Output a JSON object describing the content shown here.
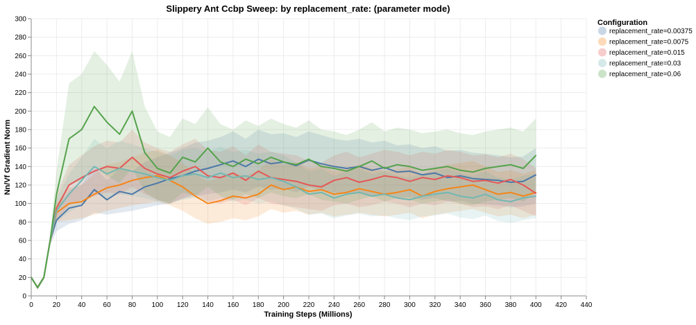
{
  "chart_data": {
    "type": "line",
    "title": "Slippery Ant Ccbp Sweep: by replacement_rate: (parameter mode)",
    "xlabel": "Training Steps (Millions)",
    "ylabel": "Nn/Vf Gradient Norm",
    "xlim": [
      0,
      440
    ],
    "ylim": [
      0,
      300
    ],
    "x_ticks": [
      "0",
      "20",
      "40",
      "60",
      "80",
      "100",
      "120",
      "140",
      "160",
      "180",
      "200",
      "220",
      "240",
      "260",
      "280",
      "300",
      "320",
      "340",
      "360",
      "380",
      "400",
      "420",
      "440"
    ],
    "y_ticks": [
      "0",
      "20",
      "40",
      "60",
      "80",
      "100",
      "120",
      "140",
      "160",
      "180",
      "200",
      "220",
      "240",
      "260",
      "280",
      "300"
    ],
    "grid": true,
    "legend": {
      "title": "Configuration",
      "position": "top-right"
    },
    "shaded_band": "min-max range across seeds",
    "x": [
      0,
      5,
      10,
      15,
      20,
      30,
      40,
      50,
      60,
      70,
      80,
      90,
      100,
      110,
      120,
      130,
      140,
      150,
      160,
      170,
      180,
      190,
      200,
      210,
      220,
      230,
      240,
      250,
      260,
      270,
      280,
      290,
      300,
      310,
      320,
      330,
      340,
      350,
      360,
      370,
      380,
      390,
      400
    ],
    "series": [
      {
        "name": "replacement_rate=0.00375",
        "color": "#4c78a8",
        "values": [
          20,
          9,
          20,
          60,
          82,
          95,
          98,
          115,
          104,
          113,
          110,
          118,
          122,
          127,
          130,
          135,
          138,
          142,
          146,
          140,
          148,
          143,
          145,
          141,
          147,
          143,
          140,
          138,
          140,
          136,
          139,
          134,
          135,
          131,
          133,
          128,
          130,
          127,
          126,
          125,
          123,
          124,
          131
        ],
        "lower": [
          20,
          7,
          18,
          55,
          70,
          78,
          82,
          90,
          88,
          90,
          92,
          95,
          98,
          100,
          105,
          108,
          110,
          112,
          115,
          112,
          118,
          115,
          116,
          112,
          118,
          114,
          112,
          110,
          111,
          108,
          110,
          106,
          107,
          104,
          106,
          102,
          103,
          100,
          99,
          98,
          96,
          97,
          100
        ],
        "upper": [
          21,
          11,
          22,
          66,
          95,
          115,
          120,
          140,
          125,
          138,
          135,
          145,
          150,
          155,
          160,
          166,
          168,
          172,
          178,
          170,
          180,
          175,
          176,
          172,
          178,
          174,
          170,
          168,
          170,
          166,
          168,
          163,
          164,
          160,
          162,
          157,
          158,
          155,
          154,
          152,
          150,
          151,
          160
        ]
      },
      {
        "name": "replacement_rate=0.0075",
        "color": "#f58518",
        "values": [
          20,
          9,
          20,
          60,
          90,
          100,
          102,
          110,
          117,
          120,
          125,
          128,
          130,
          125,
          118,
          108,
          100,
          103,
          108,
          106,
          110,
          120,
          115,
          118,
          113,
          115,
          110,
          112,
          116,
          113,
          110,
          112,
          115,
          108,
          113,
          116,
          118,
          120,
          115,
          110,
          112,
          108,
          112
        ],
        "lower": [
          20,
          7,
          18,
          55,
          80,
          82,
          84,
          88,
          92,
          95,
          98,
          100,
          102,
          98,
          92,
          84,
          78,
          80,
          84,
          82,
          86,
          94,
          90,
          92,
          88,
          90,
          86,
          88,
          90,
          88,
          86,
          88,
          90,
          84,
          88,
          90,
          92,
          94,
          90,
          86,
          88,
          84,
          88
        ],
        "upper": [
          21,
          11,
          22,
          66,
          100,
          118,
          120,
          132,
          142,
          145,
          150,
          155,
          158,
          152,
          144,
          132,
          124,
          128,
          134,
          130,
          136,
          148,
          142,
          145,
          138,
          140,
          135,
          137,
          142,
          138,
          135,
          137,
          140,
          132,
          138,
          142,
          144,
          146,
          140,
          134,
          136,
          132,
          136
        ]
      },
      {
        "name": "replacement_rate=0.015",
        "color": "#e45756",
        "values": [
          20,
          9,
          20,
          60,
          95,
          120,
          128,
          135,
          140,
          138,
          150,
          138,
          132,
          128,
          135,
          140,
          130,
          128,
          133,
          125,
          135,
          128,
          126,
          124,
          120,
          118,
          125,
          128,
          123,
          126,
          130,
          128,
          124,
          128,
          126,
          130,
          128,
          124,
          125,
          122,
          126,
          120,
          111
        ],
        "lower": [
          20,
          7,
          18,
          55,
          82,
          98,
          104,
          108,
          112,
          110,
          118,
          110,
          104,
          100,
          106,
          110,
          102,
          100,
          104,
          98,
          106,
          100,
          98,
          96,
          94,
          92,
          98,
          100,
          96,
          98,
          102,
          100,
          96,
          100,
          98,
          102,
          100,
          96,
          97,
          94,
          98,
          92,
          86
        ],
        "upper": [
          21,
          11,
          22,
          66,
          110,
          142,
          152,
          162,
          168,
          166,
          180,
          166,
          160,
          156,
          164,
          170,
          158,
          156,
          162,
          152,
          164,
          156,
          154,
          152,
          146,
          144,
          152,
          156,
          150,
          154,
          158,
          156,
          152,
          156,
          154,
          158,
          156,
          152,
          153,
          150,
          154,
          148,
          138
        ]
      },
      {
        "name": "replacement_rate=0.03",
        "color": "#72b7b2",
        "values": [
          20,
          9,
          20,
          60,
          92,
          110,
          125,
          140,
          132,
          138,
          135,
          132,
          128,
          125,
          130,
          132,
          128,
          133,
          128,
          130,
          126,
          128,
          124,
          118,
          110,
          112,
          106,
          110,
          112,
          108,
          110,
          106,
          104,
          108,
          110,
          112,
          108,
          106,
          110,
          104,
          102,
          106,
          108
        ],
        "lower": [
          20,
          7,
          18,
          55,
          80,
          90,
          100,
          112,
          106,
          110,
          108,
          106,
          102,
          100,
          104,
          106,
          102,
          106,
          102,
          104,
          100,
          102,
          98,
          94,
          88,
          89,
          84,
          87,
          89,
          86,
          87,
          84,
          82,
          86,
          87,
          89,
          85,
          83,
          87,
          81,
          79,
          82,
          84
        ],
        "upper": [
          21,
          11,
          22,
          66,
          106,
          132,
          150,
          170,
          160,
          168,
          164,
          160,
          156,
          152,
          158,
          160,
          156,
          161,
          156,
          158,
          154,
          156,
          152,
          144,
          135,
          138,
          130,
          135,
          138,
          132,
          135,
          130,
          128,
          132,
          135,
          138,
          133,
          130,
          135,
          128,
          126,
          130,
          132
        ]
      },
      {
        "name": "replacement_rate=0.06",
        "color": "#54a24b",
        "values": [
          20,
          9,
          20,
          60,
          110,
          170,
          180,
          205,
          188,
          175,
          200,
          155,
          138,
          133,
          150,
          145,
          160,
          145,
          140,
          148,
          143,
          150,
          145,
          142,
          148,
          140,
          138,
          135,
          140,
          146,
          138,
          142,
          140,
          136,
          138,
          140,
          136,
          134,
          138,
          140,
          142,
          138,
          152
        ],
        "lower": [
          20,
          7,
          18,
          55,
          88,
          120,
          125,
          140,
          130,
          122,
          138,
          112,
          104,
          100,
          112,
          108,
          118,
          108,
          104,
          110,
          106,
          112,
          108,
          106,
          110,
          104,
          102,
          100,
          104,
          108,
          102,
          106,
          104,
          100,
          102,
          104,
          100,
          98,
          102,
          104,
          106,
          102,
          112
        ],
        "upper": [
          21,
          11,
          22,
          66,
          135,
          230,
          240,
          265,
          250,
          232,
          265,
          205,
          178,
          172,
          192,
          186,
          204,
          186,
          180,
          190,
          184,
          192,
          186,
          182,
          190,
          180,
          178,
          174,
          180,
          188,
          178,
          182,
          180,
          176,
          178,
          180,
          176,
          174,
          178,
          180,
          182,
          178,
          192
        ]
      }
    ]
  }
}
